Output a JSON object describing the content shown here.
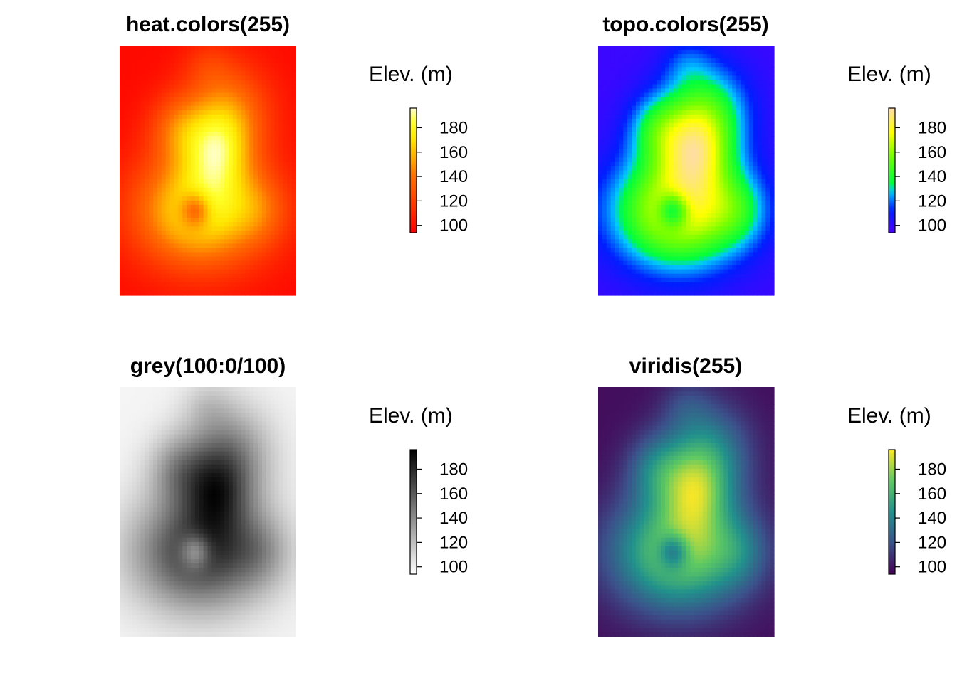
{
  "chart_data": [
    {
      "type": "heatmap",
      "title": "heat.colors(255)",
      "palette": "heat.colors",
      "legend": {
        "title": "Elev. (m)",
        "ticks": [
          "100",
          "120",
          "140",
          "160",
          "180"
        ],
        "range": [
          94,
          196
        ]
      }
    },
    {
      "type": "heatmap",
      "title": "topo.colors(255)",
      "palette": "topo.colors",
      "legend": {
        "title": "Elev. (m)",
        "ticks": [
          "100",
          "120",
          "140",
          "160",
          "180"
        ],
        "range": [
          94,
          196
        ]
      }
    },
    {
      "type": "heatmap",
      "title": "grey(100:0/100)",
      "palette": "grey",
      "legend": {
        "title": "Elev. (m)",
        "ticks": [
          "100",
          "120",
          "140",
          "160",
          "180"
        ],
        "range": [
          94,
          196
        ]
      }
    },
    {
      "type": "heatmap",
      "title": "viridis(255)",
      "palette": "viridis",
      "legend": {
        "title": "Elev. (m)",
        "ticks": [
          "100",
          "120",
          "140",
          "160",
          "180"
        ],
        "range": [
          94,
          196
        ]
      }
    }
  ]
}
